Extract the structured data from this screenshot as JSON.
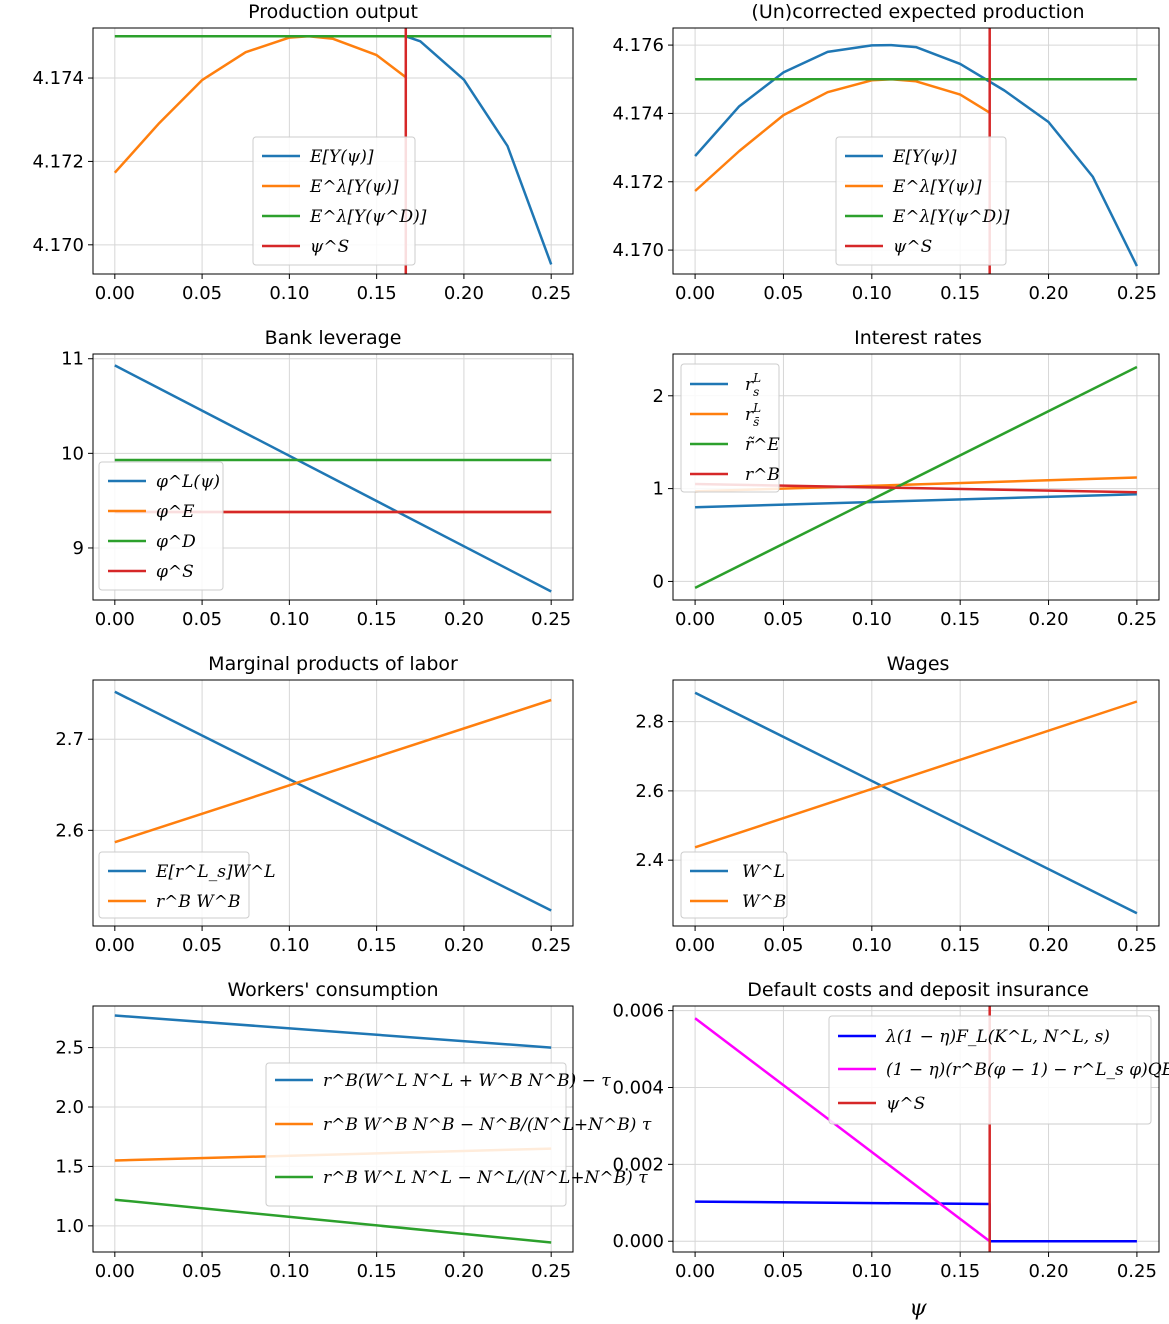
{
  "xlabel": "ψ",
  "chart_data": [
    {
      "type": "line",
      "title": "Production output",
      "x": [
        0,
        0.025,
        0.05,
        0.075,
        0.1,
        0.125,
        0.15,
        0.1667,
        0.175,
        0.2,
        0.225,
        0.25
      ],
      "xticks": [
        "0.00",
        "0.05",
        "0.10",
        "0.15",
        "0.20",
        "0.25"
      ],
      "xlim": [
        -0.0125,
        0.2625
      ],
      "ylim": [
        4.1693,
        4.1752
      ],
      "yticks": [
        4.17,
        4.172,
        4.174
      ],
      "ytick_labels": [
        "4.170",
        "4.172",
        "4.174"
      ],
      "legend": "center",
      "series": [
        {
          "name": "E[Y(ψ)]",
          "color": "#1f77b4",
          "x": [
            0.1667,
            0.175,
            0.2,
            0.225,
            0.25
          ],
          "values": [
            4.175,
            4.17488,
            4.17396,
            4.17237,
            4.16953
          ]
        },
        {
          "name": "E^λ[Y(ψ)]",
          "color": "#ff7f0e",
          "x": [
            0,
            0.025,
            0.05,
            0.075,
            0.1,
            0.111,
            0.125,
            0.15,
            0.1667
          ],
          "values": [
            4.17173,
            4.1729,
            4.17395,
            4.17462,
            4.17497,
            4.175,
            4.17494,
            4.17455,
            4.17402
          ]
        },
        {
          "name": "E^λ[Y(ψ^D)]",
          "color": "#2ca02c",
          "x": [
            0,
            0.25
          ],
          "values": [
            4.175,
            4.175
          ]
        },
        {
          "name": "ψ^S",
          "color": "#d62728",
          "vline": 0.1667
        }
      ]
    },
    {
      "type": "line",
      "title": "(Un)corrected expected production",
      "x": [
        0,
        0.25
      ],
      "xticks": [
        "0.00",
        "0.05",
        "0.10",
        "0.15",
        "0.20",
        "0.25"
      ],
      "xlim": [
        -0.0125,
        0.2625
      ],
      "ylim": [
        4.1693,
        4.1765
      ],
      "yticks": [
        4.17,
        4.172,
        4.174,
        4.176
      ],
      "ytick_labels": [
        "4.170",
        "4.172",
        "4.174",
        "4.176"
      ],
      "legend": "center-right",
      "series": [
        {
          "name": "E[Y(ψ)]",
          "color": "#1f77b4",
          "x": [
            0,
            0.025,
            0.05,
            0.075,
            0.1,
            0.111,
            0.125,
            0.15,
            0.175,
            0.2,
            0.225,
            0.25
          ],
          "values": [
            4.17275,
            4.17421,
            4.1752,
            4.1758,
            4.17599,
            4.176,
            4.17594,
            4.17545,
            4.17467,
            4.17375,
            4.17215,
            4.16953
          ]
        },
        {
          "name": "E^λ[Y(ψ)]",
          "color": "#ff7f0e",
          "x": [
            0,
            0.025,
            0.05,
            0.075,
            0.1,
            0.111,
            0.125,
            0.15,
            0.1667
          ],
          "values": [
            4.17173,
            4.1729,
            4.17395,
            4.17462,
            4.17497,
            4.175,
            4.17494,
            4.17455,
            4.17402
          ]
        },
        {
          "name": "E^λ[Y(ψ^D)]",
          "color": "#2ca02c",
          "x": [
            0,
            0.25
          ],
          "values": [
            4.175,
            4.175
          ]
        },
        {
          "name": "ψ^S",
          "color": "#d62728",
          "vline": 0.1667
        }
      ]
    },
    {
      "type": "line",
      "title": "Bank leverage",
      "xticks": [
        "0.00",
        "0.05",
        "0.10",
        "0.15",
        "0.20",
        "0.25"
      ],
      "xlim": [
        -0.0125,
        0.2625
      ],
      "ylim": [
        8.45,
        11.05
      ],
      "yticks": [
        9,
        10,
        11
      ],
      "ytick_labels": [
        "9",
        "10",
        "11"
      ],
      "legend": "lower-left",
      "series": [
        {
          "name": "φ^L(ψ)",
          "color": "#1f77b4",
          "x": [
            0,
            0.25
          ],
          "values": [
            10.93,
            8.54
          ]
        },
        {
          "name": "φ^E",
          "color": "#ff7f0e",
          "x": [
            0,
            0.25
          ],
          "values": [
            9.38,
            9.38
          ]
        },
        {
          "name": "φ^D",
          "color": "#2ca02c",
          "x": [
            0,
            0.25
          ],
          "values": [
            9.93,
            9.93
          ]
        },
        {
          "name": "φ^S",
          "color": "#d62728",
          "x": [
            0,
            0.25
          ],
          "values": [
            9.38,
            9.38
          ]
        }
      ]
    },
    {
      "type": "line",
      "title": "Interest rates",
      "xticks": [
        "0.00",
        "0.05",
        "0.10",
        "0.15",
        "0.20",
        "0.25"
      ],
      "xlim": [
        -0.0125,
        0.2625
      ],
      "ylim": [
        -0.2,
        2.45
      ],
      "yticks": [
        0,
        1,
        2
      ],
      "ytick_labels": [
        "0",
        "1",
        "2"
      ],
      "legend": "upper-left",
      "series": [
        {
          "name": "r^L_s (lower bar)",
          "color": "#1f77b4",
          "x": [
            0,
            0.25
          ],
          "values": [
            0.8,
            0.94
          ]
        },
        {
          "name": "r^L_s (upper bar)",
          "color": "#ff7f0e",
          "x": [
            0,
            0.25
          ],
          "values": [
            0.97,
            1.12
          ]
        },
        {
          "name": "r̃^E",
          "color": "#2ca02c",
          "x": [
            0,
            0.25
          ],
          "values": [
            -0.07,
            2.31
          ]
        },
        {
          "name": "r^B",
          "color": "#d62728",
          "x": [
            0,
            0.25
          ],
          "values": [
            1.05,
            0.96
          ]
        }
      ]
    },
    {
      "type": "line",
      "title": "Marginal products of labor",
      "xticks": [
        "0.00",
        "0.05",
        "0.10",
        "0.15",
        "0.20",
        "0.25"
      ],
      "xlim": [
        -0.0125,
        0.2625
      ],
      "ylim": [
        2.495,
        2.765
      ],
      "yticks": [
        2.6,
        2.7
      ],
      "ytick_labels": [
        "2.6",
        "2.7"
      ],
      "legend": "lower-left",
      "series": [
        {
          "name": "E[r^L_s]W^L",
          "color": "#1f77b4",
          "x": [
            0,
            0.25
          ],
          "values": [
            2.752,
            2.512
          ]
        },
        {
          "name": "r^B W^B",
          "color": "#ff7f0e",
          "x": [
            0,
            0.25
          ],
          "values": [
            2.587,
            2.743
          ]
        }
      ]
    },
    {
      "type": "line",
      "title": "Wages",
      "xticks": [
        "0.00",
        "0.05",
        "0.10",
        "0.15",
        "0.20",
        "0.25"
      ],
      "xlim": [
        -0.0125,
        0.2625
      ],
      "ylim": [
        2.21,
        2.92
      ],
      "yticks": [
        2.4,
        2.6,
        2.8
      ],
      "ytick_labels": [
        "2.4",
        "2.6",
        "2.8"
      ],
      "legend": "lower-left",
      "series": [
        {
          "name": "W^L",
          "color": "#1f77b4",
          "x": [
            0,
            0.25
          ],
          "values": [
            2.883,
            2.247
          ]
        },
        {
          "name": "W^B",
          "color": "#ff7f0e",
          "x": [
            0,
            0.25
          ],
          "values": [
            2.437,
            2.858
          ]
        }
      ]
    },
    {
      "type": "line",
      "title": "Workers' consumption",
      "xticks": [
        "0.00",
        "0.05",
        "0.10",
        "0.15",
        "0.20",
        "0.25"
      ],
      "xlim": [
        -0.0125,
        0.2625
      ],
      "ylim": [
        0.78,
        2.85
      ],
      "yticks": [
        1.0,
        1.5,
        2.0,
        2.5
      ],
      "ytick_labels": [
        "1.0",
        "1.5",
        "2.0",
        "2.5"
      ],
      "legend": "center-right",
      "series": [
        {
          "name": "r^B(W^L N^L + W^B N^B) − τ",
          "color": "#1f77b4",
          "x": [
            0,
            0.25
          ],
          "values": [
            2.77,
            2.5
          ]
        },
        {
          "name": "r^B W^B N^B − N^B/(N^L+N^B) τ",
          "color": "#ff7f0e",
          "x": [
            0,
            0.25
          ],
          "values": [
            1.55,
            1.65
          ]
        },
        {
          "name": "r^B W^L N^L − N^L/(N^L+N^B) τ",
          "color": "#2ca02c",
          "x": [
            0,
            0.25
          ],
          "values": [
            1.22,
            0.86
          ]
        }
      ]
    },
    {
      "type": "line",
      "title": "Default costs and deposit insurance",
      "xticks": [
        "0.00",
        "0.05",
        "0.10",
        "0.15",
        "0.20",
        "0.25"
      ],
      "xlim": [
        -0.0125,
        0.2625
      ],
      "ylim": [
        -0.00028,
        0.00612
      ],
      "yticks": [
        0,
        0.002,
        0.004,
        0.006
      ],
      "ytick_labels": [
        "0.000",
        "0.002",
        "0.004",
        "0.006"
      ],
      "legend": "upper-right",
      "series": [
        {
          "name": "λ(1 − η)F_L(K^L, N^L, s)",
          "color": "#0000ff",
          "x": [
            0,
            0.1667,
            0.1667,
            0.25
          ],
          "values": [
            0.00103,
            0.00097,
            0.0,
            0.0
          ]
        },
        {
          "name": "(1 − η)(r^B(φ − 1) − r^L_s φ)QE",
          "color": "#ff00ff",
          "x": [
            0,
            0.1667
          ],
          "values": [
            0.0058,
            0.0
          ]
        },
        {
          "name": "ψ^S",
          "color": "#d62728",
          "vline": 0.1667
        }
      ]
    }
  ]
}
